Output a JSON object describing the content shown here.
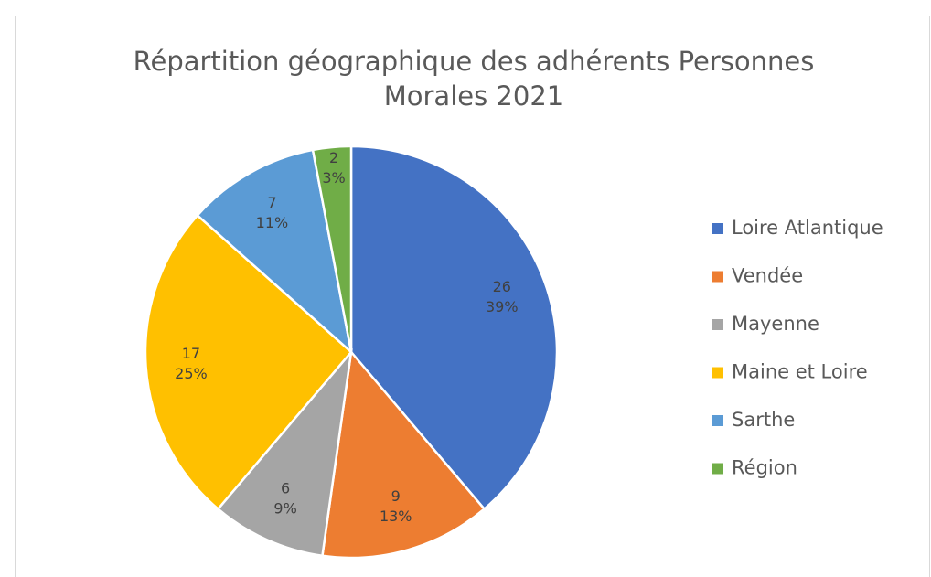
{
  "chart_data": {
    "type": "pie",
    "title": "Répartition géographique des adhérents Personnes Morales 2021",
    "categories": [
      "Loire Atlantique",
      "Vendée",
      "Mayenne",
      "Maine et Loire",
      "Sarthe",
      "Région"
    ],
    "values": [
      26,
      9,
      6,
      17,
      7,
      2
    ],
    "percent_labels": [
      "39%",
      "13%",
      "9%",
      "25%",
      "11%",
      "3%"
    ],
    "colors": [
      "#4472c4",
      "#ed7d31",
      "#a5a5a5",
      "#ffc000",
      "#5b9bd5",
      "#70ad47"
    ],
    "legend": "right"
  }
}
